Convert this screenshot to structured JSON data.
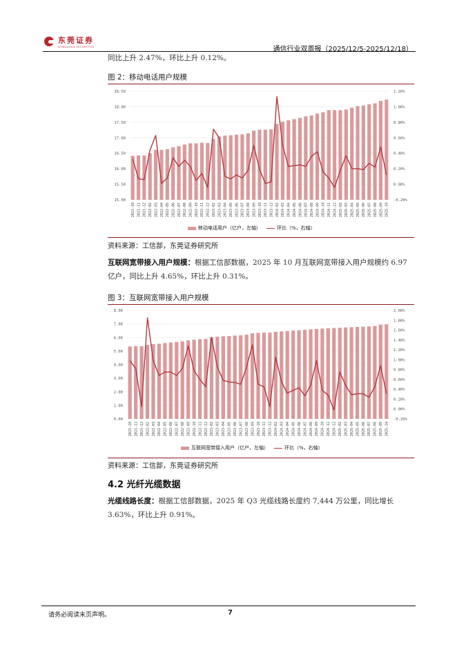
{
  "header": {
    "logo_cn": "东莞证券",
    "logo_en": "DONGGUAN SECURITIES",
    "report_title": "通信行业双周报（2025/12/5-2025/12/18）"
  },
  "intro_text": "同比上升 2.47%，环比上升 0.12%。",
  "figure2": {
    "title": "图 2：移动电话用户规模",
    "legend_bar": "移动电话用户（亿户，左轴）",
    "legend_line": "环比（%，右轴）",
    "source": "资料来源：工信部，东莞证券研究所"
  },
  "broadband_para": {
    "bold": "互联网宽带接入用户规模：",
    "text": "根据工信部数据，2025 年 10 月互联网宽带接入用户规模约 6.97 亿户，同比上升 4.65%，环比上升 0.31%。"
  },
  "figure3": {
    "title": "图 3：互联网宽带接入用户规模",
    "legend_bar": "互联网宽带接入用户（亿户，左轴）",
    "legend_line": "环比（%，右轴）",
    "source": "资料来源：工信部，东莞证券研究所"
  },
  "section": {
    "heading": "4.2 光纤光缆数据"
  },
  "cable_para": {
    "bold": "光缆线路长度：",
    "text": "根据工信部数据，2025 年 Q3 光缆线路长度约 7,444 万公里，同比增长 3.63%，环比上升 0.91%。"
  },
  "footer": {
    "note": "请务必阅读末页声明。",
    "page": "7"
  },
  "colors": {
    "bar": "#d99a9c",
    "line": "#b5383d",
    "rule": "#8b1a1e",
    "brand": "#b8282e"
  },
  "chart_data": [
    {
      "type": "bar+line",
      "title": "图 2：移动电话用户规模",
      "categories": [
        "2021-10",
        "2021-11",
        "2021-12",
        "2022-02",
        "2022-03",
        "2022-04",
        "2022-05",
        "2022-06",
        "2022-07",
        "2022-08",
        "2022-09",
        "2022-10",
        "2022-11",
        "2022-12",
        "2023-02",
        "2023-03",
        "2023-04",
        "2023-05",
        "2023-06",
        "2023-07",
        "2023-08",
        "2023-09",
        "2023-10",
        "2023-11",
        "2023-12",
        "2024-02",
        "2024-03",
        "2024-04",
        "2024-05",
        "2024-06",
        "2024-07",
        "2024-08",
        "2024-09",
        "2024-10",
        "2024-11",
        "2024-12",
        "2025-02",
        "2025-03",
        "2025-04",
        "2025-05",
        "2025-06",
        "2025-07",
        "2025-08",
        "2025-09",
        "2025-10"
      ],
      "series": [
        {
          "name": "移动电话用户（亿户，左轴）",
          "type": "bar",
          "axis": "left",
          "values": [
            16.42,
            16.43,
            16.43,
            16.5,
            16.61,
            16.61,
            16.63,
            16.69,
            16.73,
            16.78,
            16.82,
            16.82,
            16.84,
            16.83,
            16.96,
            17.04,
            17.07,
            17.08,
            17.1,
            17.11,
            17.14,
            17.23,
            17.26,
            17.26,
            17.27,
            17.45,
            17.52,
            17.56,
            17.6,
            17.64,
            17.69,
            17.72,
            17.78,
            17.82,
            17.89,
            17.89,
            17.89,
            17.91,
            17.97,
            18.02,
            18.04,
            18.08,
            18.11,
            18.19,
            18.23
          ]
        },
        {
          "name": "环比（%，右轴）",
          "type": "line",
          "axis": "right",
          "values": [
            0.33,
            0.07,
            0.06,
            0.44,
            0.63,
            0.01,
            0.08,
            0.34,
            0.23,
            0.31,
            0.23,
            0.05,
            0.14,
            -0.04,
            0.71,
            0.6,
            0.1,
            0.07,
            0.12,
            0.08,
            0.18,
            0.5,
            0.19,
            0.01,
            0.03,
            1.13,
            0.5,
            0.23,
            0.24,
            0.25,
            0.23,
            0.36,
            0.42,
            0.16,
            0.08,
            -0.04,
            0.18,
            0.37,
            0.2,
            0.2,
            0.19,
            0.27,
            0.22,
            0.48,
            0.12
          ]
        }
      ],
      "yleft": {
        "ticks": [
          "15.00",
          "15.50",
          "16.00",
          "16.50",
          "17.00",
          "17.50",
          "18.00",
          "18.50"
        ],
        "ylim": [
          15.0,
          18.5
        ]
      },
      "yright": {
        "ticks": [
          "-0.20%",
          "0.00%",
          "0.20%",
          "0.40%",
          "0.60%",
          "0.80%",
          "1.00%",
          "1.20%"
        ],
        "ylim": [
          -0.2,
          1.2
        ]
      },
      "legend_position": "bottom",
      "grid": true
    },
    {
      "type": "bar+line",
      "title": "图 3：互联网宽带接入用户规模",
      "categories": [
        "2021-10",
        "2021-11",
        "2021-12",
        "2022-02",
        "2022-03",
        "2022-04",
        "2022-05",
        "2022-06",
        "2022-07",
        "2022-08",
        "2022-09",
        "2022-10",
        "2022-11",
        "2022-12",
        "2023-02",
        "2023-03",
        "2023-04",
        "2023-05",
        "2023-06",
        "2023-07",
        "2023-08",
        "2023-09",
        "2023-10",
        "2023-11",
        "2023-12",
        "2024-02",
        "2024-03",
        "2024-04",
        "2024-05",
        "2024-06",
        "2024-07",
        "2024-08",
        "2024-09",
        "2024-10",
        "2024-11",
        "2024-12",
        "2025-02",
        "2025-03",
        "2025-04",
        "2025-05",
        "2025-06",
        "2025-07",
        "2025-08",
        "2025-09",
        "2025-10"
      ],
      "series": [
        {
          "name": "互联网宽带接入用户（亿户，左轴）",
          "type": "bar",
          "axis": "left",
          "values": [
            5.34,
            5.36,
            5.36,
            5.46,
            5.51,
            5.54,
            5.59,
            5.63,
            5.67,
            5.72,
            5.79,
            5.84,
            5.88,
            5.9,
            6.03,
            6.06,
            6.09,
            6.11,
            6.14,
            6.16,
            6.21,
            6.31,
            6.34,
            6.36,
            6.36,
            6.42,
            6.45,
            6.48,
            6.51,
            6.54,
            6.57,
            6.6,
            6.63,
            6.66,
            6.68,
            6.7,
            6.72,
            6.74,
            6.76,
            6.78,
            6.8,
            6.82,
            6.85,
            6.95,
            6.97
          ]
        },
        {
          "name": "环比（%，右轴）",
          "type": "line",
          "axis": "right",
          "values": [
            0.98,
            0.82,
            0.05,
            1.85,
            0.98,
            0.68,
            0.75,
            0.75,
            0.68,
            0.82,
            1.28,
            0.78,
            0.6,
            0.45,
            1.45,
            0.85,
            0.58,
            0.55,
            0.54,
            0.5,
            0.85,
            1.3,
            0.5,
            0.45,
            0.05,
            1.05,
            0.55,
            0.32,
            0.38,
            0.43,
            0.27,
            0.48,
            0.98,
            0.38,
            0.28,
            -0.02,
            0.75,
            0.48,
            0.29,
            0.31,
            0.31,
            0.24,
            0.45,
            0.88,
            0.31
          ]
        }
      ],
      "yleft": {
        "ticks": [
          "0.00",
          "1.00",
          "2.00",
          "3.00",
          "4.00",
          "5.00",
          "6.00",
          "7.00",
          "8.00"
        ],
        "ylim": [
          0,
          8
        ]
      },
      "yright": {
        "ticks": [
          "-0.20%",
          "0.00%",
          "0.20%",
          "0.40%",
          "0.60%",
          "0.80%",
          "1.00%",
          "1.20%",
          "1.40%",
          "1.60%",
          "1.80%",
          "2.00%"
        ],
        "ylim": [
          -0.2,
          2.0
        ]
      },
      "legend_position": "bottom",
      "grid": true
    }
  ]
}
